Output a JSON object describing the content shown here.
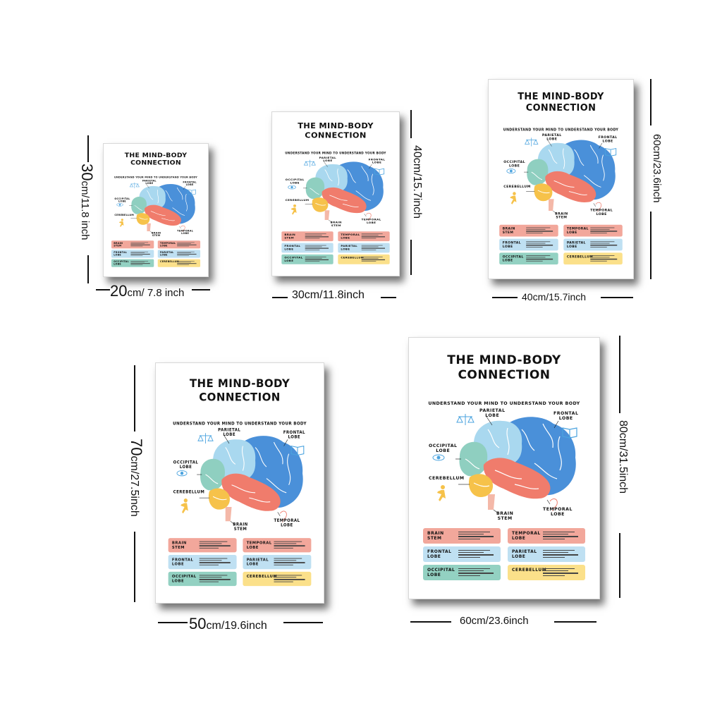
{
  "poster": {
    "title_line1": "THE MIND-BODY",
    "title_line2": "CONNECTION",
    "subtitle": "UNDERSTAND YOUR MIND TO UNDERSTAND YOUR BODY",
    "labels": {
      "parietal": "PARIETAL\nLOBE",
      "frontal": "FRONTAL\nLOBE",
      "occipital": "OCCIPITAL\nLOBE",
      "cerebellum": "CEREBELLUM",
      "brain_stem": "BRAIN\nSTEM",
      "temporal": "TEMPORAL\nLOBE"
    },
    "boxes": [
      {
        "name": "BRAIN\nSTEM",
        "color": "#f2a79b"
      },
      {
        "name": "TEMPORAL\nLOBE",
        "color": "#f2a79b"
      },
      {
        "name": "FRONTAL\nLOBE",
        "color": "#bfe0f2"
      },
      {
        "name": "PARIETAL\nLOBE",
        "color": "#bfe0f2"
      },
      {
        "name": "OCCIPITAL\nLOBE",
        "color": "#93d1c2"
      },
      {
        "name": "CEREBELLUM",
        "color": "#fbe08a"
      }
    ]
  },
  "sizes": {
    "s20x30": {
      "width_num": "20",
      "width_rest": "cm/ 7.8 inch",
      "height_num": "30",
      "height_rest": "cm/11.8 inch"
    },
    "s30x40": {
      "width": "30cm/11.8inch",
      "height": "40cm/15.7inch"
    },
    "s40x60": {
      "width": "40cm/15.7inch",
      "height": "60cm/23.6inch"
    },
    "s50x70": {
      "width_num": "50",
      "width_rest": "cm/19.6inch",
      "height_num": "70",
      "height_rest": "cm/27.5inch"
    },
    "s60x80": {
      "width": "60cm/23.6inch",
      "height": "80cm/31.5inch"
    }
  },
  "colors": {
    "frontal": "#4a90d9",
    "parietal": "#a9d8ef",
    "occipital": "#8fcfc0",
    "temporal": "#f07c6c",
    "cerebellum": "#f6c24a",
    "stem": "#f4b8a8",
    "icon": "#4aa3df"
  }
}
